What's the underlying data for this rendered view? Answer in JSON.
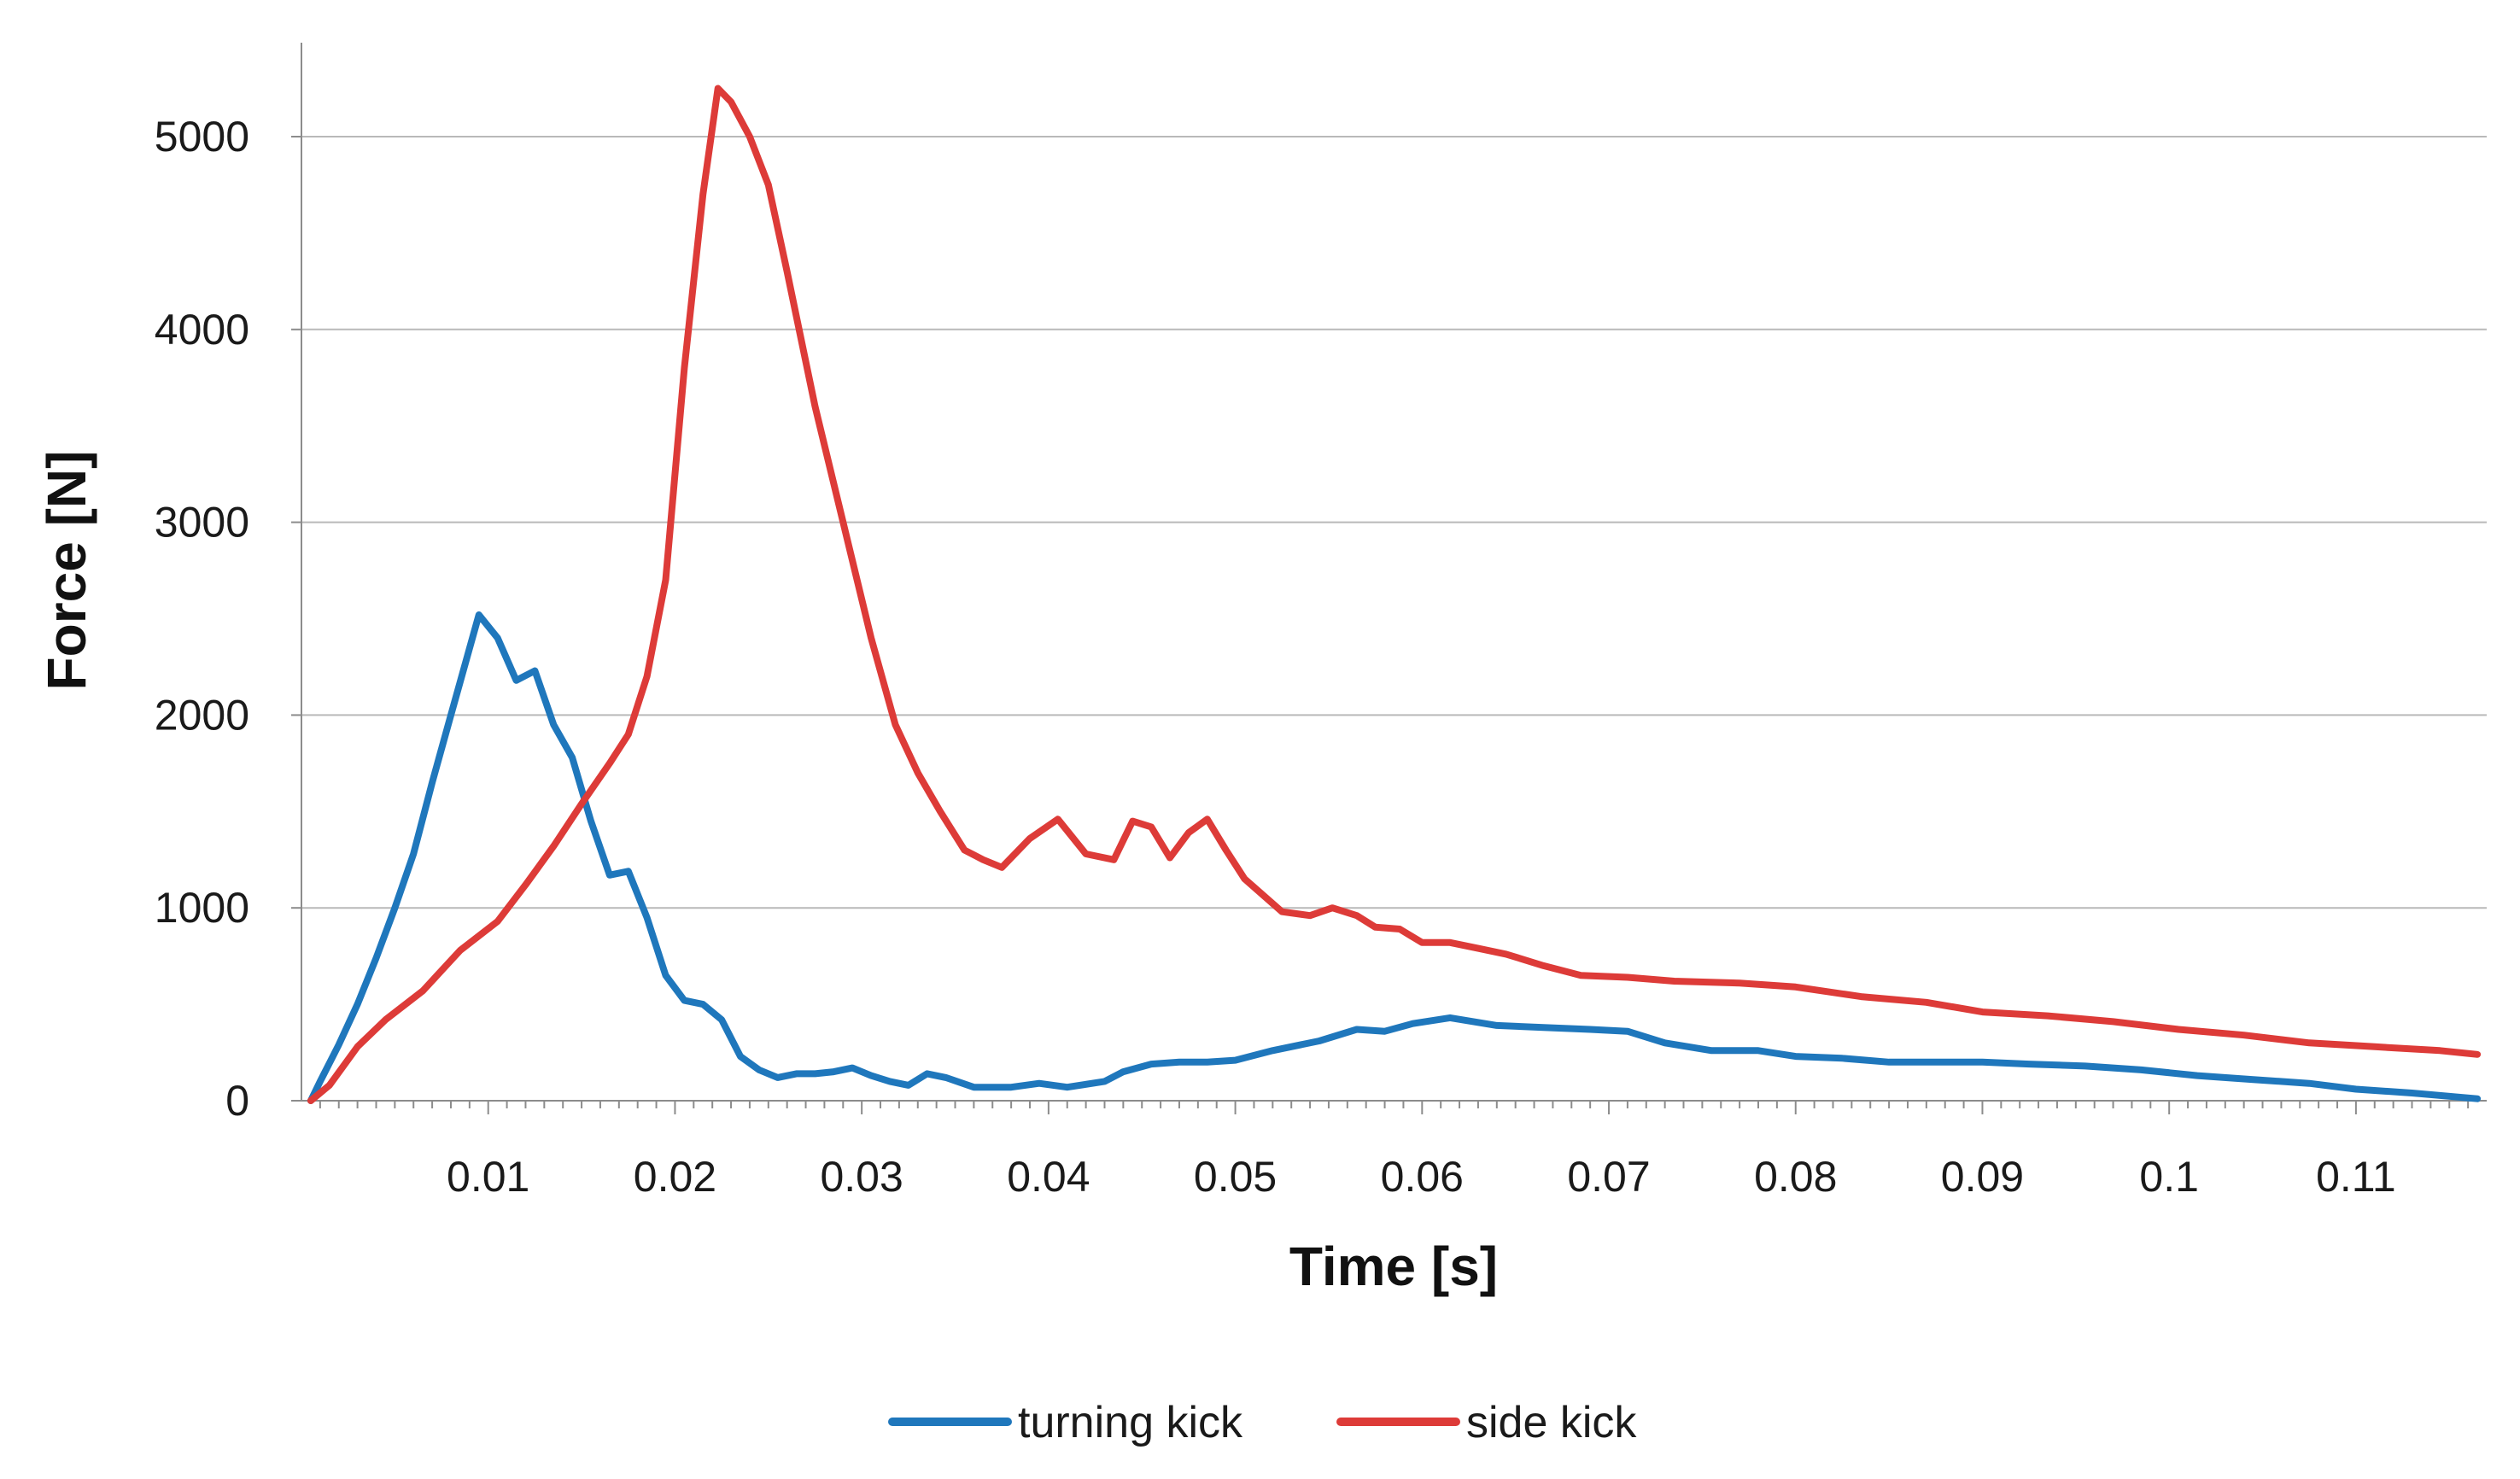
{
  "chart_data": {
    "type": "line",
    "xlabel": "Time [s]",
    "ylabel": "Force [N]",
    "xlim": [
      0,
      0.117
    ],
    "ylim": [
      0,
      5500
    ],
    "xticks": [
      0.01,
      0.02,
      0.03,
      0.04,
      0.05,
      0.06,
      0.07,
      0.08,
      0.09,
      0.1,
      0.11
    ],
    "xtick_labels": [
      "0.01",
      "0.02",
      "0.03",
      "0.04",
      "0.05",
      "0.06",
      "0.07",
      "0.08",
      "0.09",
      "0.1",
      "0.11"
    ],
    "yticks": [
      0,
      1000,
      2000,
      3000,
      4000,
      5000
    ],
    "ytick_labels": [
      "0",
      "1000",
      "2000",
      "3000",
      "4000",
      "5000"
    ],
    "grid": "horizontal",
    "legend_position": "bottom-center",
    "series": [
      {
        "name": "turning kick",
        "color": "#1f77bc",
        "x": [
          0.0005,
          0.001,
          0.002,
          0.003,
          0.004,
          0.005,
          0.006,
          0.007,
          0.008,
          0.0095,
          0.0105,
          0.0115,
          0.0125,
          0.0135,
          0.0145,
          0.0155,
          0.0165,
          0.0175,
          0.0185,
          0.0195,
          0.0205,
          0.0215,
          0.0225,
          0.0235,
          0.0245,
          0.0255,
          0.0265,
          0.0275,
          0.0285,
          0.0295,
          0.0305,
          0.0315,
          0.0325,
          0.0335,
          0.0345,
          0.036,
          0.038,
          0.0395,
          0.041,
          0.043,
          0.044,
          0.0455,
          0.047,
          0.0485,
          0.05,
          0.052,
          0.0545,
          0.0565,
          0.058,
          0.0595,
          0.0615,
          0.064,
          0.0665,
          0.069,
          0.071,
          0.073,
          0.0755,
          0.078,
          0.08,
          0.0825,
          0.085,
          0.0875,
          0.09,
          0.0925,
          0.0955,
          0.0985,
          0.1015,
          0.1045,
          0.1075,
          0.11,
          0.113,
          0.1165
        ],
        "y": [
          0,
          100,
          290,
          500,
          740,
          1000,
          1280,
          1650,
          2000,
          2520,
          2400,
          2180,
          2230,
          1950,
          1780,
          1450,
          1170,
          1190,
          950,
          650,
          520,
          500,
          420,
          230,
          160,
          120,
          140,
          140,
          150,
          170,
          130,
          100,
          80,
          140,
          120,
          70,
          70,
          90,
          70,
          100,
          150,
          190,
          200,
          200,
          210,
          260,
          310,
          370,
          360,
          400,
          430,
          390,
          380,
          370,
          360,
          300,
          260,
          260,
          230,
          220,
          200,
          200,
          200,
          190,
          180,
          160,
          130,
          110,
          90,
          60,
          40,
          10
        ]
      },
      {
        "name": "side kick",
        "color": "#dd3b38",
        "x": [
          0.0005,
          0.0015,
          0.003,
          0.0045,
          0.0065,
          0.0085,
          0.0105,
          0.012,
          0.0135,
          0.015,
          0.0165,
          0.0175,
          0.0185,
          0.0195,
          0.0205,
          0.0215,
          0.0223,
          0.023,
          0.024,
          0.025,
          0.026,
          0.0275,
          0.029,
          0.0305,
          0.0318,
          0.033,
          0.0342,
          0.0355,
          0.0365,
          0.0375,
          0.039,
          0.0405,
          0.042,
          0.0435,
          0.0445,
          0.0455,
          0.0465,
          0.0475,
          0.0485,
          0.0495,
          0.0505,
          0.0525,
          0.054,
          0.0552,
          0.0565,
          0.0575,
          0.0588,
          0.06,
          0.0615,
          0.063,
          0.0645,
          0.0665,
          0.0685,
          0.071,
          0.0735,
          0.077,
          0.08,
          0.0835,
          0.087,
          0.09,
          0.0935,
          0.097,
          0.1005,
          0.104,
          0.1075,
          0.111,
          0.1145,
          0.1165
        ],
        "y": [
          0,
          80,
          280,
          420,
          570,
          780,
          930,
          1120,
          1320,
          1540,
          1750,
          1900,
          2200,
          2700,
          3800,
          4700,
          5250,
          5180,
          5000,
          4750,
          4300,
          3600,
          3000,
          2400,
          1950,
          1700,
          1500,
          1300,
          1250,
          1210,
          1360,
          1460,
          1280,
          1250,
          1450,
          1420,
          1260,
          1390,
          1460,
          1300,
          1150,
          980,
          960,
          1000,
          960,
          900,
          890,
          820,
          820,
          790,
          760,
          700,
          650,
          640,
          620,
          610,
          590,
          540,
          510,
          460,
          440,
          410,
          370,
          340,
          300,
          280,
          260,
          240
        ]
      }
    ]
  }
}
